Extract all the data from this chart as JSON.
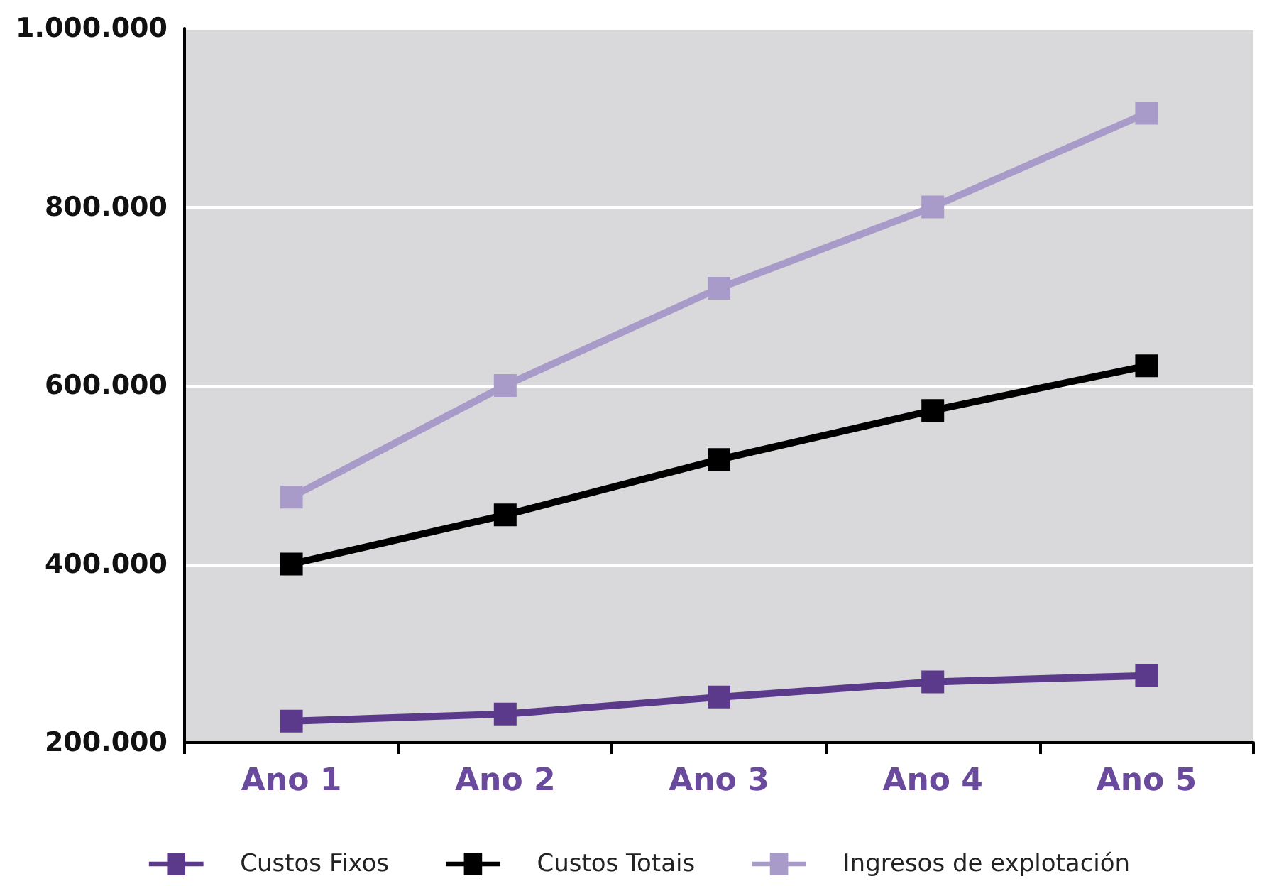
{
  "chart_data": {
    "type": "line",
    "categories": [
      "Ano 1",
      "Ano 2",
      "Ano 3",
      "Ano 4",
      "Ano 5"
    ],
    "series": [
      {
        "name": "Custos Fixos",
        "color": "#5b3a8c",
        "values": [
          224000,
          232000,
          251000,
          268000,
          275000
        ]
      },
      {
        "name": "Custos Totais",
        "color": "#000000",
        "values": [
          400000,
          455000,
          517000,
          572000,
          622000
        ]
      },
      {
        "name": "Ingresos de explotación",
        "color": "#a99bc9",
        "values": [
          475000,
          600000,
          709000,
          800000,
          905000
        ]
      }
    ],
    "ylim": [
      200000,
      1000000
    ],
    "yticks": [
      {
        "value": 200000,
        "label": "200.000"
      },
      {
        "value": 400000,
        "label": "400.000"
      },
      {
        "value": 600000,
        "label": "600.000"
      },
      {
        "value": 800000,
        "label": "800.000"
      },
      {
        "value": 1000000,
        "label": "1.000.000"
      }
    ],
    "grid": "y",
    "legend": "bottom",
    "marker": "square",
    "line_style": "solid"
  }
}
